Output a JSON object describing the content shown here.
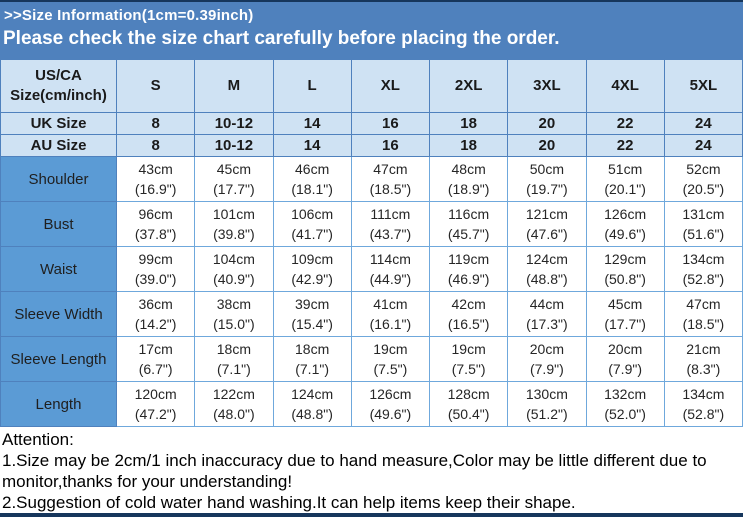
{
  "header": {
    "size_info_title": ">>Size Information(1cm=0.39inch)",
    "notice": "Please check the size chart carefully before placing the order."
  },
  "chart_data": {
    "type": "table",
    "title": "Size Information (1cm = 0.39 inch)",
    "corner_header": "US/CA Size(cm/inch)",
    "size_columns": [
      "S",
      "M",
      "L",
      "XL",
      "2XL",
      "3XL",
      "4XL",
      "5XL"
    ],
    "size_rows": [
      {
        "label": "UK Size",
        "values": [
          "8",
          "10-12",
          "14",
          "16",
          "18",
          "20",
          "22",
          "24"
        ]
      },
      {
        "label": "AU Size",
        "values": [
          "8",
          "10-12",
          "14",
          "16",
          "18",
          "20",
          "22",
          "24"
        ]
      }
    ],
    "measurement_rows": [
      {
        "label": "Shoulder",
        "cm": [
          "43cm",
          "45cm",
          "46cm",
          "47cm",
          "48cm",
          "50cm",
          "51cm",
          "52cm"
        ],
        "inch": [
          "(16.9\")",
          "(17.7\")",
          "(18.1\")",
          "(18.5\")",
          "(18.9\")",
          "(19.7\")",
          "(20.1\")",
          "(20.5\")"
        ]
      },
      {
        "label": "Bust",
        "cm": [
          "96cm",
          "101cm",
          "106cm",
          "111cm",
          "116cm",
          "121cm",
          "126cm",
          "131cm"
        ],
        "inch": [
          "(37.8\")",
          "(39.8\")",
          "(41.7\")",
          "(43.7\")",
          "(45.7\")",
          "(47.6\")",
          "(49.6\")",
          "(51.6\")"
        ]
      },
      {
        "label": "Waist",
        "cm": [
          "99cm",
          "104cm",
          "109cm",
          "114cm",
          "119cm",
          "124cm",
          "129cm",
          "134cm"
        ],
        "inch": [
          "(39.0\")",
          "(40.9\")",
          "(42.9\")",
          "(44.9\")",
          "(46.9\")",
          "(48.8\")",
          "(50.8\")",
          "(52.8\")"
        ]
      },
      {
        "label": "Sleeve Width",
        "cm": [
          "36cm",
          "38cm",
          "39cm",
          "41cm",
          "42cm",
          "44cm",
          "45cm",
          "47cm"
        ],
        "inch": [
          "(14.2\")",
          "(15.0\")",
          "(15.4\")",
          "(16.1\")",
          "(16.5\")",
          "(17.3\")",
          "(17.7\")",
          "(18.5\")"
        ]
      },
      {
        "label": "Sleeve Length",
        "cm": [
          "17cm",
          "18cm",
          "18cm",
          "19cm",
          "19cm",
          "20cm",
          "20cm",
          "21cm"
        ],
        "inch": [
          "(6.7\")",
          "(7.1\")",
          "(7.1\")",
          "(7.5\")",
          "(7.5\")",
          "(7.9\")",
          "(7.9\")",
          "(8.3\")"
        ]
      },
      {
        "label": "Length",
        "cm": [
          "120cm",
          "122cm",
          "124cm",
          "126cm",
          "128cm",
          "130cm",
          "132cm",
          "134cm"
        ],
        "inch": [
          "(47.2\")",
          "(48.0\")",
          "(48.8\")",
          "(49.6\")",
          "(50.4\")",
          "(51.2\")",
          "(52.0\")",
          "(52.8\")"
        ]
      }
    ]
  },
  "attention": {
    "title": "Attention:",
    "note1": "1.Size may be 2cm/1 inch inaccuracy due to hand measure,Color may be little different due to monitor,thanks for your understanding!",
    "note2": "2.Suggestion of cold water hand washing.It can help items keep their shape."
  },
  "colors": {
    "banner_blue": "#4f81bd",
    "header_light_blue": "#cfe2f3",
    "label_blue": "#5b9bd5",
    "border_blue": "#6fa8dc",
    "dark_edge": "#16365c",
    "banner_text": "#ffffff"
  }
}
